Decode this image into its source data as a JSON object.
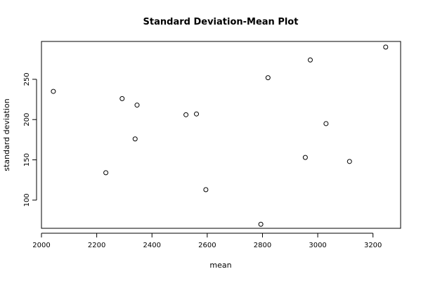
{
  "chart_data": {
    "type": "scatter",
    "title": "Standard Deviation-Mean Plot",
    "xlabel": "mean",
    "ylabel": "standard deviation",
    "xlim": [
      2000,
      3300
    ],
    "ylim": [
      65,
      297
    ],
    "xticks": [
      2000,
      2200,
      2400,
      2600,
      2800,
      3000,
      3200
    ],
    "yticks": [
      100,
      150,
      200,
      250
    ],
    "grid": false,
    "series": [
      {
        "points": [
          {
            "x": 2043,
            "y": 235
          },
          {
            "x": 2233,
            "y": 134
          },
          {
            "x": 2292,
            "y": 226
          },
          {
            "x": 2339,
            "y": 176
          },
          {
            "x": 2346,
            "y": 218
          },
          {
            "x": 2523,
            "y": 206
          },
          {
            "x": 2561,
            "y": 207
          },
          {
            "x": 2595,
            "y": 113
          },
          {
            "x": 2794,
            "y": 70
          },
          {
            "x": 2820,
            "y": 252
          },
          {
            "x": 2955,
            "y": 153
          },
          {
            "x": 2973,
            "y": 274
          },
          {
            "x": 3030,
            "y": 195
          },
          {
            "x": 3115,
            "y": 148
          },
          {
            "x": 3246,
            "y": 290
          }
        ]
      }
    ]
  },
  "colors": {
    "background": "#ffffff",
    "foreground": "#000000"
  }
}
